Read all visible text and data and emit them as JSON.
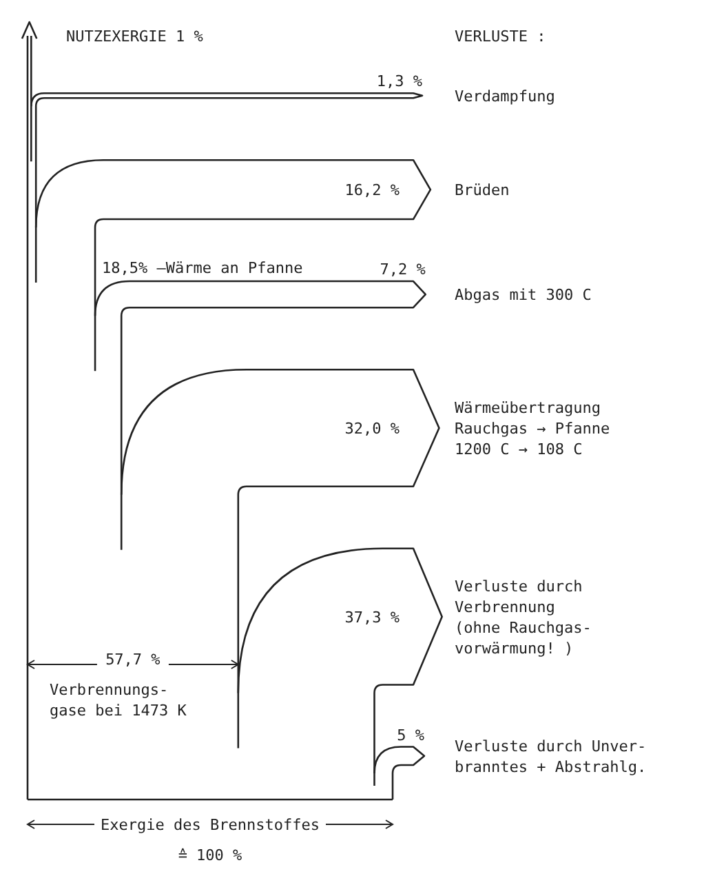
{
  "chart_data": {
    "type": "other",
    "categories": [
      "Verdampfung",
      "Brüden",
      "Abgas mit 300 C",
      "Wärmeübertragung\nRauchgas → Pfanne\n1200 C  → 108 C",
      "Verluste durch\nVerbrennung\n(ohne Rauchgas-\nvorwärmung! )",
      "Verluste durch Unver-\nbranntes + Abstrahlg."
    ],
    "values": [
      1.3,
      16.2,
      7.2,
      32.0,
      37.3,
      5
    ],
    "value_labels": [
      "1,3 %",
      "16,2 %",
      "7,2 %",
      "32,0 %",
      "37,3 %",
      "5 %"
    ],
    "annotations": [
      "NUTZEXERGIE  1 %",
      "VERLUSTE :",
      "18,5% —Wärme an Pfanne",
      "57,7 %",
      "Verbrennungs-\ngase bei 1473 K",
      "Exergie des Brennstoffes",
      "≙ 100 %"
    ]
  }
}
